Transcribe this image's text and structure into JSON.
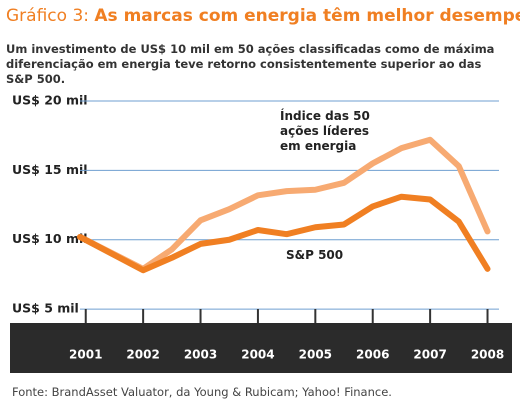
{
  "chart_data": {
    "type": "line",
    "title_label": "Gráfico 3:",
    "title": "As marcas com energia têm melhor desempenho",
    "subtitle": "Um investimento de US$ 10 mil em 50 ações classificadas como de máxima diferenciação em energia teve retorno consistentemente superior ao das S&P 500.",
    "source": "Fonte: BrandAsset Valuator, da Young & Rubicam; Yahoo! Finance.",
    "x": [
      2000.9,
      2002,
      2002.5,
      2003,
      2003.5,
      2004,
      2004.5,
      2005,
      2005.5,
      2006,
      2006.5,
      2007,
      2007.5,
      2008
    ],
    "series": [
      {
        "name": "Índice das 50 ações líderes em energia",
        "color": "#f7aa72",
        "values": [
          10.2,
          7.9,
          9.3,
          11.4,
          12.2,
          13.2,
          13.5,
          13.6,
          14.1,
          15.5,
          16.6,
          17.2,
          15.3,
          10.6
        ]
      },
      {
        "name": "S&P 500",
        "color": "#f07f22",
        "values": [
          10.2,
          7.8,
          8.7,
          9.7,
          10.0,
          10.7,
          10.4,
          10.9,
          11.1,
          12.4,
          13.1,
          12.9,
          11.3,
          7.9
        ]
      }
    ],
    "xlim": [
      2000.9,
      2008.2
    ],
    "xticks": [
      2001,
      2002,
      2003,
      2004,
      2005,
      2006,
      2007,
      2008
    ],
    "ylim": [
      4,
      20.5
    ],
    "yticks": [
      {
        "value": 5,
        "label": "US$ 5 mil"
      },
      {
        "value": 10,
        "label": "US$ 10 mil"
      },
      {
        "value": 15,
        "label": "US$ 15 mil"
      },
      {
        "value": 20,
        "label": "US$ 20 mil"
      }
    ],
    "grid": true
  }
}
